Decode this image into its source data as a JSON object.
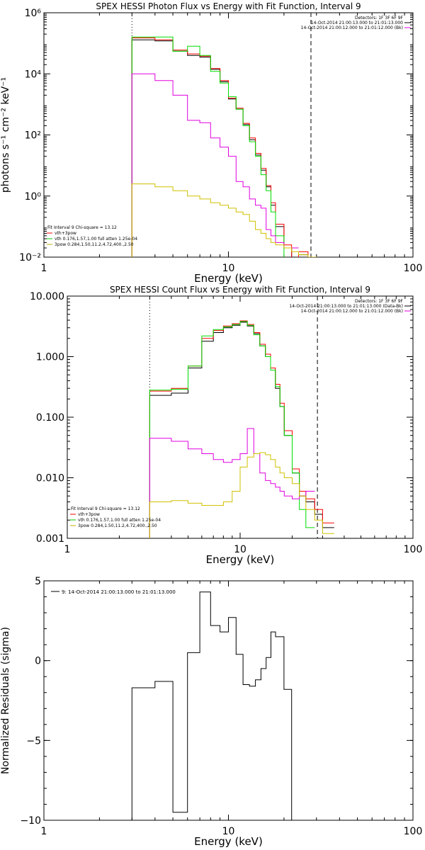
{
  "chart_data": [
    {
      "type": "line",
      "title": "SPEX HESSI Photon Flux vs Energy with Fit Function, Interval 9",
      "xlabel": "Energy (keV)",
      "ylabel": "photons s⁻¹ cm⁻² keV⁻¹",
      "xscale": "log",
      "yscale": "log",
      "xlim": [
        1,
        100
      ],
      "ylim": [
        0.01,
        1000000
      ],
      "xticks": [
        {
          "v": 1,
          "label": "1"
        },
        {
          "v": 10,
          "label": "10"
        },
        {
          "v": 100,
          "label": "100"
        }
      ],
      "yticks": [
        {
          "v": 0.01,
          "label": "10⁻²"
        },
        {
          "v": 1,
          "label": "10⁰"
        },
        {
          "v": 100,
          "label": "10²"
        },
        {
          "v": 10000,
          "label": "10⁴"
        },
        {
          "v": 1000000,
          "label": "10⁶"
        }
      ],
      "edges": [
        3,
        4,
        5,
        6,
        7,
        8,
        9,
        10,
        11,
        12,
        13,
        14,
        15,
        16,
        17,
        18,
        20,
        22,
        24,
        27,
        30,
        35
      ],
      "series": [
        {
          "name": "vth+3pow",
          "color": "#000000",
          "values": [
            130000,
            120000,
            55000,
            40000,
            35000,
            14000,
            5500,
            1500,
            700,
            220,
            70,
            22,
            7,
            2,
            0.5,
            0.1,
            0.02,
            0.007,
            0.012,
            null,
            null
          ]
        },
        {
          "name": "",
          "color": "#ff0000",
          "values": [
            150000,
            130000,
            60000,
            45000,
            38000,
            15000,
            6000,
            1600,
            750,
            240,
            80,
            25,
            8,
            2.2,
            0.6,
            0.12,
            0.025,
            0.008,
            0.015,
            0.01,
            0.006
          ]
        },
        {
          "name": "vth 0.176,1.57,1.00  full atten 1.25e-04",
          "color": "#00dd00",
          "values": [
            160000,
            160000,
            55000,
            80000,
            40000,
            12000,
            5000,
            1800,
            700,
            200,
            60,
            20,
            5,
            1.5,
            0.3,
            0.05,
            0.008,
            null,
            null,
            null,
            null
          ]
        },
        {
          "name": "",
          "color": "#e000e0",
          "values": [
            10000,
            6000,
            2000,
            300,
            250,
            80,
            40,
            20,
            3,
            2,
            0.8,
            0.5,
            0.4,
            0.08,
            0.05,
            0.03,
            0.02,
            0.02,
            null,
            null,
            null
          ]
        },
        {
          "name": "3pow 0.284,1.50,11.2,4.72,400.,2.50",
          "color": "#d0c000",
          "values": [
            2.5,
            2,
            1.5,
            1,
            0.8,
            0.6,
            0.5,
            0.4,
            0.3,
            0.25,
            0.15,
            0.08,
            0.06,
            0.04,
            0.03,
            0.025,
            0.02,
            0.015,
            0.012,
            0.01,
            0.008
          ]
        }
      ],
      "vlines": [
        {
          "x": 3,
          "style": "dotted"
        },
        {
          "x": 28,
          "style": "dashed"
        }
      ],
      "legend_top": [
        "Detectors: 1F 3F 6F 9F",
        "14-Oct-2014 21:00:13.000 to 21:01:13.000",
        "14-Oct-2014 21:00:12.000 to 21:01:12.000 (Bk)"
      ],
      "legend_top_colors": [
        "#000000",
        "#000000",
        "#e000e0"
      ],
      "legend_bottom": [
        "Fit Interval  9    Chi-square = 13.12",
        "vth+3pow",
        "vth 0.176,1.57,1.00  full atten 1.25e-04",
        "3pow 0.284,1.50,11.2,4.72,400.,2.50"
      ],
      "legend_bottom_colors": [
        "",
        "#ff0000",
        "#00cc00",
        "#c0b000"
      ]
    },
    {
      "type": "line",
      "title": "SPEX HESSI Count Flux vs Energy with Fit Function, Interval 9",
      "xlabel": "Energy (keV)",
      "ylabel": "",
      "xscale": "log",
      "yscale": "log",
      "xlim": [
        1,
        100
      ],
      "ylim": [
        0.001,
        10
      ],
      "xticks": [
        {
          "v": 1,
          "label": "1"
        },
        {
          "v": 10,
          "label": "10"
        },
        {
          "v": 100,
          "label": "100"
        }
      ],
      "yticks": [
        {
          "v": 0.001,
          "label": "0.001"
        },
        {
          "v": 0.01,
          "label": "0.010"
        },
        {
          "v": 0.1,
          "label": "0.100"
        },
        {
          "v": 1,
          "label": "1.000"
        },
        {
          "v": 10,
          "label": "10.000"
        }
      ],
      "edges": [
        3,
        4,
        5,
        6,
        7,
        8,
        9,
        10,
        11,
        12,
        13,
        14,
        15,
        16,
        17,
        18,
        20,
        22,
        24,
        27,
        30,
        35
      ],
      "series": [
        {
          "name": "vth+3pow",
          "color": "#000000",
          "values": [
            0.23,
            0.25,
            0.65,
            1.8,
            2.5,
            3,
            3.3,
            3.7,
            3.2,
            2.4,
            1.5,
            1,
            0.6,
            0.3,
            0.15,
            0.05,
            0.012,
            0.005,
            0.004,
            0.0025,
            0.0015
          ]
        },
        {
          "name": "",
          "color": "#ff0000",
          "values": [
            0.27,
            0.3,
            0.7,
            2,
            2.7,
            3.2,
            3.5,
            3.9,
            3.4,
            2.5,
            1.6,
            1.1,
            0.65,
            0.35,
            0.17,
            0.06,
            0.014,
            0.006,
            0.0045,
            0.003,
            0.0018
          ]
        },
        {
          "name": "vth 0.176,1.57,1.00  full atten 1.25e-04",
          "color": "#00dd00",
          "values": [
            0.28,
            0.29,
            0.7,
            2.2,
            2.8,
            3.1,
            3.4,
            3.8,
            3.3,
            2.3,
            1.5,
            1,
            0.6,
            0.32,
            0.15,
            0.05,
            0.012,
            0.003,
            0.0015,
            null,
            null
          ]
        },
        {
          "name": "",
          "color": "#e000e0",
          "values": [
            0.045,
            0.04,
            0.03,
            0.025,
            0.02,
            0.018,
            0.02,
            0.025,
            0.065,
            0.025,
            0.012,
            0.009,
            0.008,
            0.007,
            0.006,
            0.005,
            0.0045,
            0.005,
            0.006,
            null,
            null
          ]
        },
        {
          "name": "3pow 0.284,1.50,11.2,4.72,400.,2.50",
          "color": "#d0c000",
          "values": [
            0.004,
            0.0042,
            0.0038,
            0.0035,
            0.0035,
            0.004,
            0.006,
            0.015,
            0.022,
            0.025,
            0.026,
            0.024,
            0.02,
            0.015,
            0.012,
            0.01,
            0.008,
            0.005,
            0.003,
            0.002,
            0.0012
          ]
        }
      ],
      "vlines": [
        {
          "x": 3,
          "style": "dotted"
        },
        {
          "x": 28,
          "style": "dashed"
        }
      ],
      "legend_top": [
        "Detectors: 1F 3F 6F 9F",
        "14-Oct-2014 21:00:13.000 to 21:01:13.000 (Data-Bk)",
        "14-Oct-2014 21:00:12.000 to 21:01:12.000 (Bk)"
      ],
      "legend_top_colors": [
        "#000000",
        "#000000",
        "#e000e0"
      ],
      "legend_bottom": [
        "Fit Interval  9    Chi-square = 13.12",
        "vth+3pow",
        "vth 0.176,1.57,1.00  full atten 1.25e-04",
        "3pow 0.284,1.50,11.2,4.72,400.,2.50"
      ],
      "legend_bottom_colors": [
        "",
        "#ff0000",
        "#00cc00",
        "#c0b000"
      ]
    },
    {
      "type": "line",
      "title": "",
      "xlabel": "Energy (keV)",
      "ylabel": "Normalized Residuals (sigma)",
      "xscale": "log",
      "yscale": "linear",
      "xlim": [
        1,
        100
      ],
      "ylim": [
        -10,
        5
      ],
      "xticks": [
        {
          "v": 1,
          "label": "1"
        },
        {
          "v": 10,
          "label": "10"
        },
        {
          "v": 100,
          "label": "100"
        }
      ],
      "yticks": [
        {
          "v": -10,
          "label": "−10"
        },
        {
          "v": -5,
          "label": "−5"
        },
        {
          "v": 0,
          "label": "0"
        },
        {
          "v": 5,
          "label": "5"
        }
      ],
      "edges": [
        3,
        4,
        5,
        6,
        7,
        8,
        9,
        10,
        11,
        12,
        13,
        14,
        15,
        16,
        17,
        18,
        20,
        22,
        24,
        27,
        30
      ],
      "series": [
        {
          "name": "9: 14-Oct-2014 21:00:13.000 to 21:01:13.000",
          "color": "#000000",
          "values": [
            -1.7,
            -1.3,
            -9.5,
            0.5,
            4.3,
            2.2,
            1.8,
            2.7,
            0.4,
            -1.5,
            -1.6,
            -1.2,
            -0.5,
            0.2,
            1.8,
            1.5,
            -1.8
          ]
        }
      ],
      "vlines": [],
      "legend_top": [
        "9: 14-Oct-2014 21:00:13.000 to 21:01:13.000"
      ],
      "legend_top_colors": [
        "#000000"
      ],
      "legend_bottom": [],
      "legend_bottom_colors": []
    }
  ]
}
